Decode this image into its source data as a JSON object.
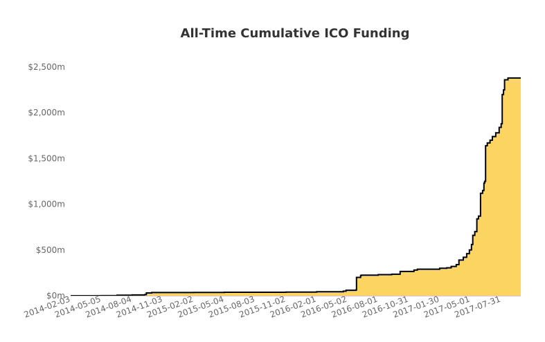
{
  "chart_data": {
    "type": "area",
    "title": "All-Time Cumulative ICO Funding",
    "xlabel": "",
    "ylabel": "",
    "x_tick_labels": [
      "2014-02-03",
      "2014-05-05",
      "2014-08-04",
      "2014-11-03",
      "2015-02-02",
      "2015-05-04",
      "2015-08-03",
      "2015-11-02",
      "2016-02-01",
      "2016-05-02",
      "2016-08-01",
      "2016-10-31",
      "2017-01-30",
      "2017-05-01",
      "2017-07-31"
    ],
    "y_tick_labels": [
      "$0m",
      "$500m",
      "$1,000m",
      "$1,500m",
      "$2,000m",
      "$2,500m"
    ],
    "ylim": [
      0,
      2500
    ],
    "xlim": [
      "2014-02-03",
      "2017-09-27"
    ],
    "fill_color": "#fcd462",
    "line_color": "#000000",
    "grid": false,
    "series": [
      {
        "values": [
          [
            "2014-02-03",
            0
          ],
          [
            "2014-05-05",
            1
          ],
          [
            "2014-06-20",
            5
          ],
          [
            "2014-08-04",
            8
          ],
          [
            "2014-09-10",
            12
          ],
          [
            "2014-09-15",
            30
          ],
          [
            "2014-10-01",
            35
          ],
          [
            "2014-11-03",
            35
          ],
          [
            "2015-02-02",
            36
          ],
          [
            "2015-05-04",
            38
          ],
          [
            "2015-08-03",
            38
          ],
          [
            "2015-11-02",
            40
          ],
          [
            "2016-02-01",
            44
          ],
          [
            "2016-04-20",
            50
          ],
          [
            "2016-04-28",
            60
          ],
          [
            "2016-05-27",
            62
          ],
          [
            "2016-05-29",
            200
          ],
          [
            "2016-06-10",
            220
          ],
          [
            "2016-06-12",
            225
          ],
          [
            "2016-08-01",
            230
          ],
          [
            "2016-09-10",
            235
          ],
          [
            "2016-10-05",
            265
          ],
          [
            "2016-11-15",
            280
          ],
          [
            "2016-11-25",
            290
          ],
          [
            "2017-01-30",
            300
          ],
          [
            "2017-02-20",
            305
          ],
          [
            "2017-03-05",
            320
          ],
          [
            "2017-03-20",
            340
          ],
          [
            "2017-03-28",
            390
          ],
          [
            "2017-04-10",
            420
          ],
          [
            "2017-04-20",
            460
          ],
          [
            "2017-04-28",
            500
          ],
          [
            "2017-05-04",
            560
          ],
          [
            "2017-05-08",
            660
          ],
          [
            "2017-05-14",
            700
          ],
          [
            "2017-05-20",
            840
          ],
          [
            "2017-05-25",
            870
          ],
          [
            "2017-05-31",
            1120
          ],
          [
            "2017-06-06",
            1150
          ],
          [
            "2017-06-10",
            1230
          ],
          [
            "2017-06-12",
            1250
          ],
          [
            "2017-06-15",
            1640
          ],
          [
            "2017-06-20",
            1670
          ],
          [
            "2017-06-28",
            1700
          ],
          [
            "2017-07-05",
            1740
          ],
          [
            "2017-07-15",
            1780
          ],
          [
            "2017-07-25",
            1840
          ],
          [
            "2017-07-31",
            1880
          ],
          [
            "2017-08-03",
            2200
          ],
          [
            "2017-08-07",
            2250
          ],
          [
            "2017-08-10",
            2360
          ],
          [
            "2017-08-20",
            2380
          ],
          [
            "2017-09-27",
            2380
          ]
        ]
      }
    ]
  }
}
